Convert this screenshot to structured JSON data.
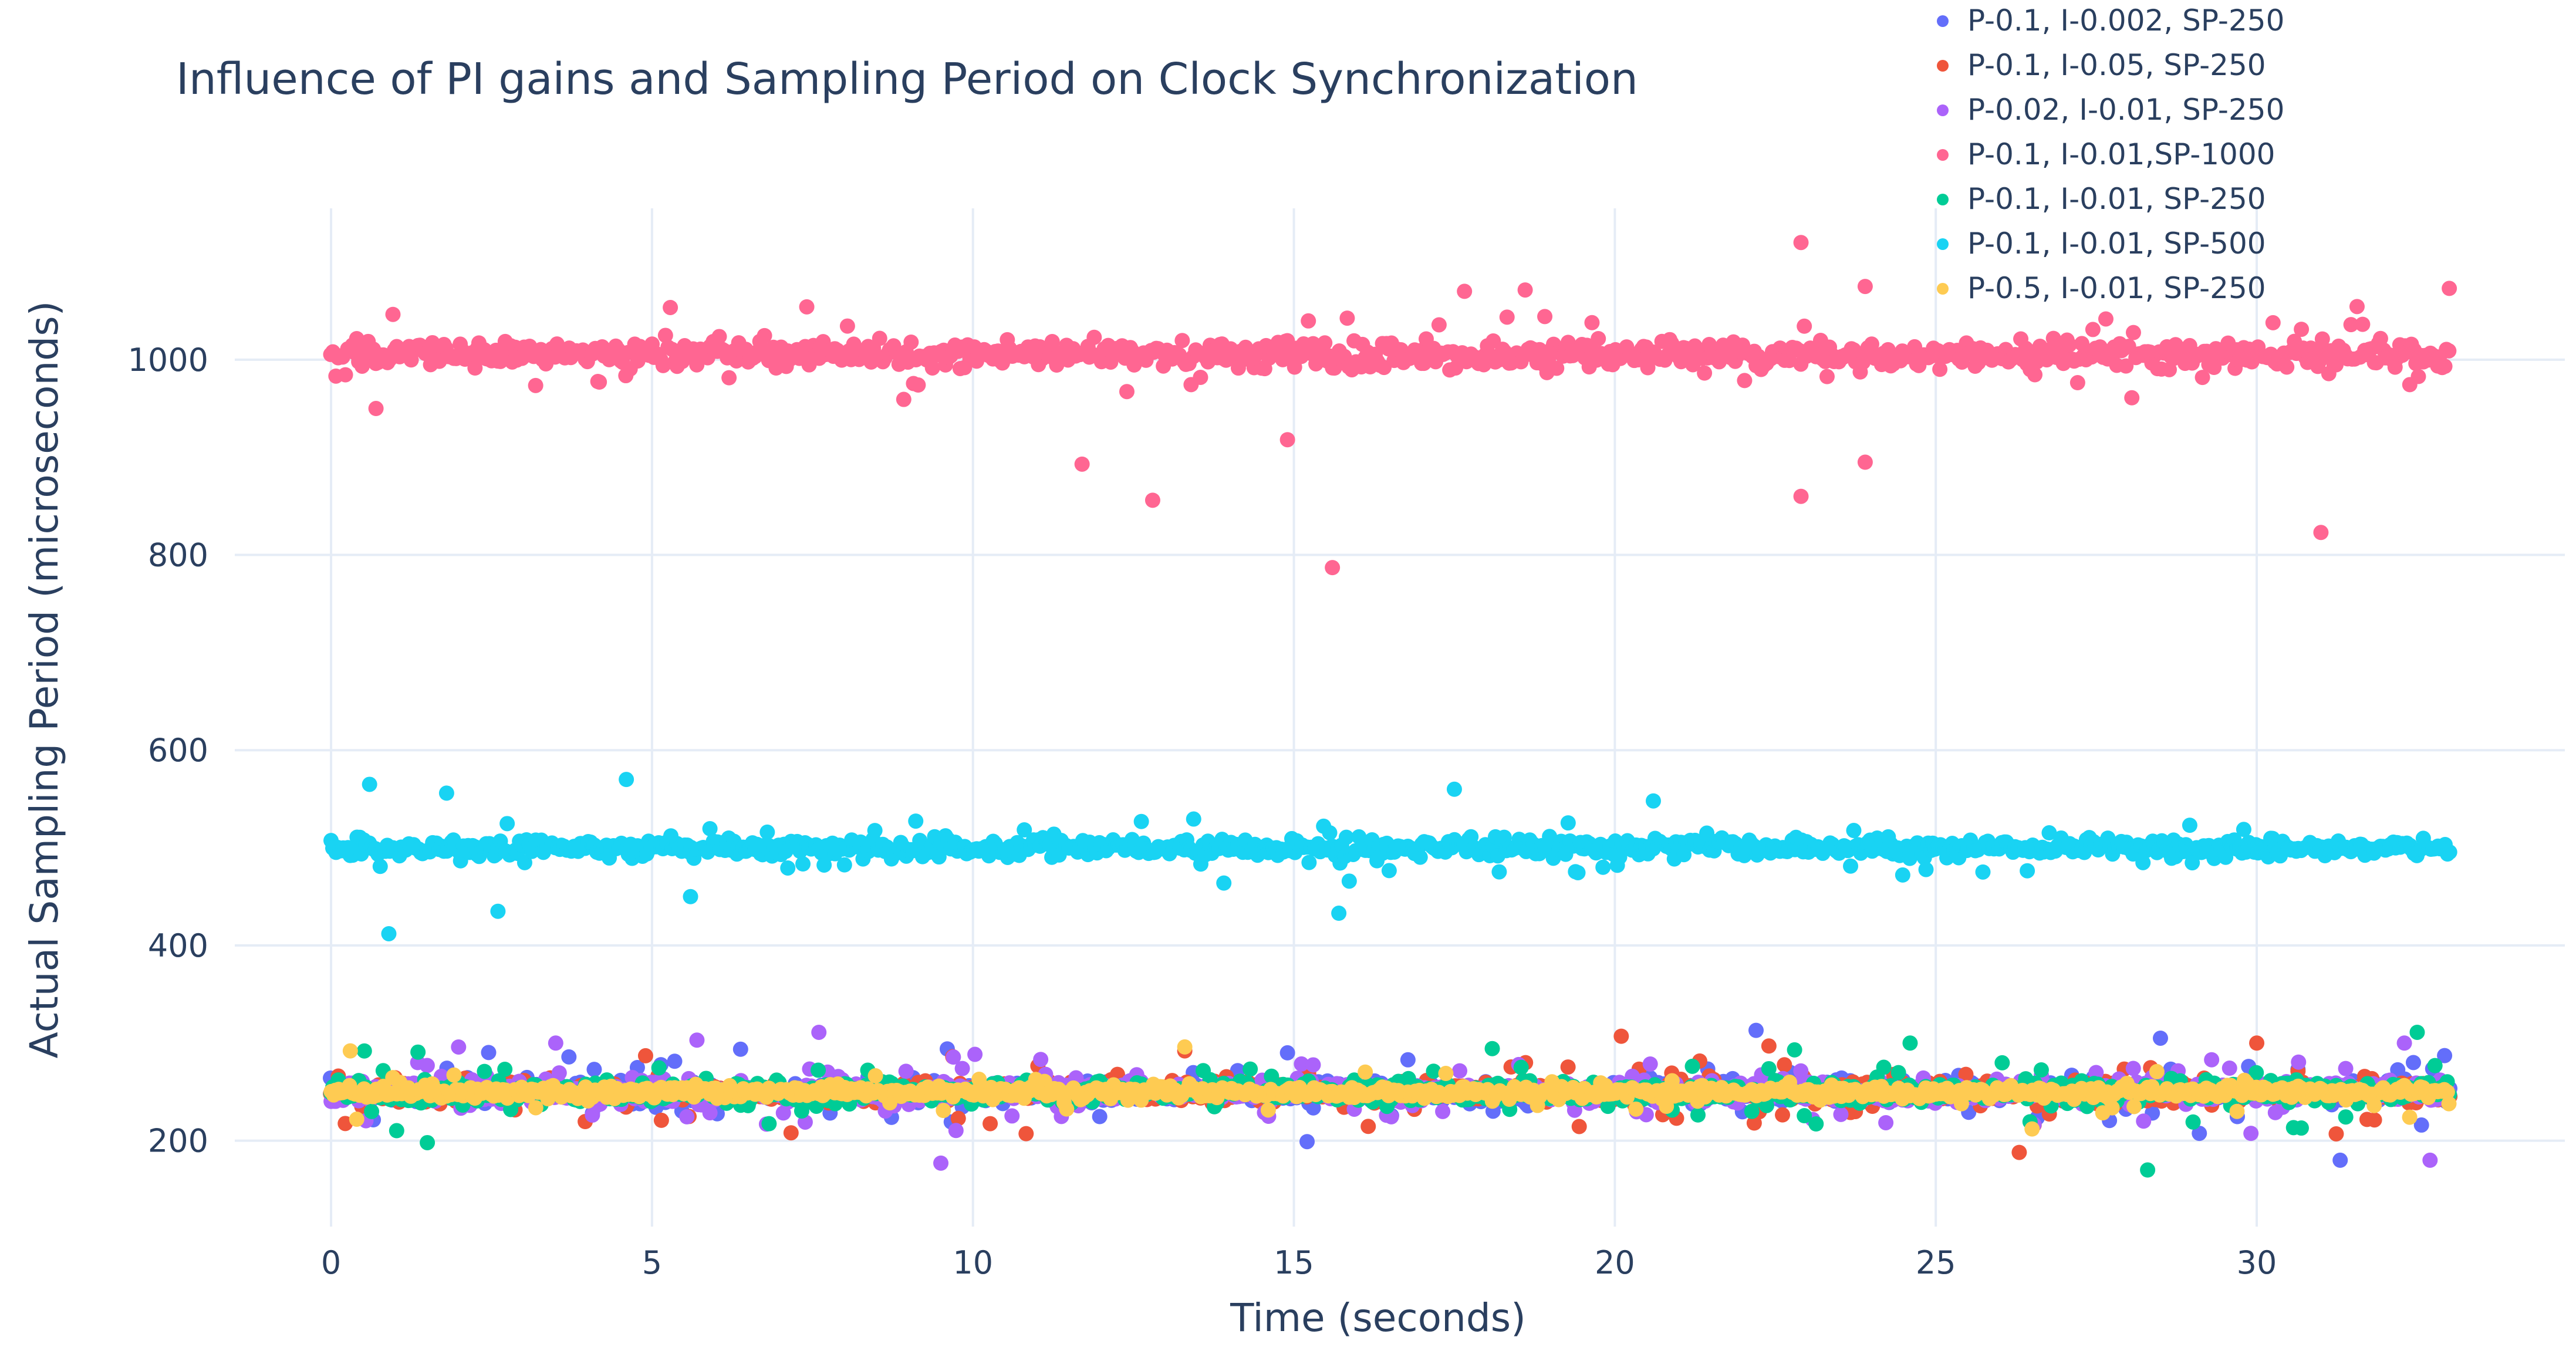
{
  "chart_data": {
    "type": "scatter",
    "title": "Influence of PI gains and Sampling Period on Clock Synchronization",
    "xlabel": "Time (seconds)",
    "ylabel": "Actual Sampling Period (microseconds)",
    "xlim": [
      -1.5,
      34.8
    ],
    "ylim": [
      112,
      1155
    ],
    "x_ticks": [
      0,
      5,
      10,
      15,
      20,
      25,
      30
    ],
    "y_ticks": [
      200,
      400,
      600,
      800,
      1000
    ],
    "grid": true,
    "legend_position": "top-right",
    "point_count_per_series": 900,
    "series": [
      {
        "name": "P-0.1, I-0.002, SP-250",
        "color": "#636efa",
        "x_range": [
          0,
          33
        ],
        "center": 250,
        "spread": 13,
        "outliers": [
          [
            22.2,
            313
          ],
          [
            28.5,
            305
          ],
          [
            14.9,
            290
          ],
          [
            31.3,
            180
          ],
          [
            9.6,
            294
          ],
          [
            4.1,
            273
          ]
        ]
      },
      {
        "name": "P-0.1, I-0.05, SP-250",
        "color": "#ef553b",
        "x_range": [
          0,
          33
        ],
        "center": 250,
        "spread": 12,
        "outliers": [
          [
            20.1,
            307
          ],
          [
            22.4,
            297
          ],
          [
            30.0,
            300
          ],
          [
            26.3,
            188
          ],
          [
            4.9,
            287
          ],
          [
            13.3,
            292
          ]
        ]
      },
      {
        "name": "P-0.02, I-0.01, SP-250",
        "color": "#ab63fa",
        "x_range": [
          0,
          33
        ],
        "center": 250,
        "spread": 13,
        "outliers": [
          [
            9.5,
            177
          ],
          [
            7.6,
            311
          ],
          [
            32.7,
            180
          ],
          [
            3.5,
            300
          ],
          [
            5.7,
            303
          ],
          [
            32.3,
            300
          ]
        ]
      },
      {
        "name": "P-0.1, I-0.01,SP-1000",
        "color": "#ff6692",
        "x_range": [
          0,
          33
        ],
        "center": 1005,
        "spread": 15,
        "outliers": [
          [
            22.9,
            1120
          ],
          [
            23.9,
            1075
          ],
          [
            33.0,
            1073
          ],
          [
            15.6,
            787
          ],
          [
            31.0,
            823
          ],
          [
            12.8,
            856
          ],
          [
            11.7,
            893
          ],
          [
            22.9,
            860
          ],
          [
            23.9,
            895
          ],
          [
            14.9,
            918
          ],
          [
            0.7,
            950
          ]
        ]
      },
      {
        "name": "P-0.1, I-0.01, SP-250",
        "color": "#00cc96",
        "x_range": [
          0,
          33
        ],
        "center": 250,
        "spread": 12,
        "outliers": [
          [
            28.3,
            170
          ],
          [
            32.5,
            311
          ],
          [
            1.5,
            198
          ],
          [
            22.8,
            293
          ],
          [
            24.6,
            300
          ]
        ]
      },
      {
        "name": "P-0.1, I-0.01, SP-500",
        "color": "#19d3f3",
        "x_range": [
          0,
          33
        ],
        "center": 500,
        "spread": 10,
        "outliers": [
          [
            4.6,
            570
          ],
          [
            0.6,
            565
          ],
          [
            17.5,
            560
          ],
          [
            0.9,
            412
          ],
          [
            15.7,
            433
          ],
          [
            2.6,
            435
          ],
          [
            1.8,
            556
          ],
          [
            5.6,
            450
          ],
          [
            20.6,
            548
          ]
        ]
      },
      {
        "name": "P-0.5, I-0.01, SP-250",
        "color": "#fecb52",
        "x_range": [
          0,
          33
        ],
        "center": 250,
        "spread": 7,
        "outliers": [
          [
            0.3,
            292
          ],
          [
            13.3,
            296
          ],
          [
            26.5,
            212
          ],
          [
            0.4,
            222
          ]
        ]
      }
    ]
  }
}
